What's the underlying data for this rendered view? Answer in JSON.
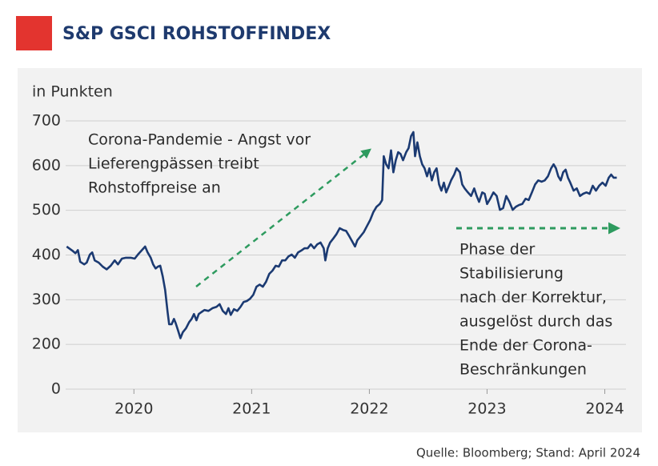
{
  "chart_data": {
    "type": "line",
    "title": "S&P GSCI ROHSTOFFINDEX",
    "y_label": "in Punkten",
    "source": "Quelle: Bloomberg; Stand: April 2024",
    "annotations": [
      [
        "Corona-Pandemie - Angst vor",
        "Lieferengpässen treibt",
        "Rohstoffpreise an"
      ],
      [
        "Phase der",
        "Stabilisierung",
        "nach der Korrektur,",
        "ausgelöst durch das",
        "Ende der Corona-",
        "Beschränkungen"
      ]
    ],
    "title_marker_color": "#e3342f",
    "xlim": [
      2019.42,
      2024.18
    ],
    "xticks": [
      2020,
      2021,
      2022,
      2023,
      2024
    ],
    "ylim": [
      0,
      700
    ],
    "yticks": [
      0,
      200,
      300,
      400,
      500,
      600,
      700
    ],
    "y_axis_break": true,
    "grid": true,
    "x": [
      2019.429,
      2019.476,
      2019.503,
      2019.524,
      2019.544,
      2019.578,
      2019.599,
      2019.626,
      2019.646,
      2019.667,
      2019.701,
      2019.735,
      2019.769,
      2019.803,
      2019.837,
      2019.864,
      2019.898,
      2019.932,
      2019.973,
      2020.007,
      2020.034,
      2020.068,
      2020.095,
      2020.116,
      2020.143,
      2020.163,
      2020.184,
      2020.204,
      2020.224,
      2020.245,
      2020.265,
      2020.286,
      2020.299,
      2020.32,
      2020.34,
      2020.354,
      2020.374,
      2020.395,
      2020.415,
      2020.442,
      2020.469,
      2020.49,
      2020.51,
      2020.531,
      2020.551,
      2020.571,
      2020.599,
      2020.633,
      2020.667,
      2020.701,
      2020.728,
      2020.755,
      2020.782,
      2020.803,
      2020.823,
      2020.85,
      2020.878,
      2020.905,
      2020.932,
      2020.959,
      2020.986,
      2021.014,
      2021.041,
      2021.068,
      2021.095,
      2021.122,
      2021.15,
      2021.177,
      2021.204,
      2021.231,
      2021.259,
      2021.286,
      2021.313,
      2021.34,
      2021.367,
      2021.395,
      2021.422,
      2021.449,
      2021.476,
      2021.503,
      2021.531,
      2021.558,
      2021.585,
      2021.612,
      2021.626,
      2021.646,
      2021.667,
      2021.694,
      2021.721,
      2021.748,
      2021.776,
      2021.803,
      2021.83,
      2021.857,
      2021.878,
      2021.898,
      2021.925,
      2021.952,
      2021.98,
      2022.007,
      2022.034,
      2022.061,
      2022.088,
      2022.109,
      2022.122,
      2022.143,
      2022.163,
      2022.184,
      2022.204,
      2022.224,
      2022.245,
      2022.265,
      2022.286,
      2022.313,
      2022.333,
      2022.354,
      2022.374,
      2022.388,
      2022.408,
      2022.429,
      2022.449,
      2022.469,
      2022.49,
      2022.51,
      2022.531,
      2022.551,
      2022.571,
      2022.592,
      2022.612,
      2022.633,
      2022.653,
      2022.673,
      2022.694,
      2022.721,
      2022.741,
      2022.769,
      2022.789,
      2022.81,
      2022.837,
      2022.864,
      2022.891,
      2022.912,
      2022.932,
      2022.959,
      2022.98,
      2023.0,
      2023.027,
      2023.054,
      2023.082,
      2023.109,
      2023.136,
      2023.163,
      2023.19,
      2023.218,
      2023.245,
      2023.272,
      2023.299,
      2023.327,
      2023.354,
      2023.381,
      2023.408,
      2023.435,
      2023.463,
      2023.49,
      2023.517,
      2023.544,
      2023.565,
      2023.585,
      2023.605,
      2023.626,
      2023.646,
      2023.667,
      2023.687,
      2023.707,
      2023.735,
      2023.762,
      2023.789,
      2023.816,
      2023.844,
      2023.871,
      2023.898,
      2023.925,
      2023.952,
      2023.98,
      2024.007,
      2024.034,
      2024.054,
      2024.075,
      2024.102
    ],
    "series": [
      {
        "name": "S&P GSCI",
        "color": "#1b3a72",
        "values": [
          419,
          410,
          404,
          411,
          385,
          379,
          383,
          401,
          406,
          388,
          383,
          374,
          368,
          376,
          388,
          379,
          392,
          394,
          394,
          392,
          401,
          411,
          419,
          406,
          394,
          379,
          370,
          374,
          376,
          352,
          322,
          272,
          245,
          245,
          257,
          248,
          232,
          214,
          227,
          236,
          250,
          257,
          268,
          254,
          268,
          272,
          277,
          275,
          281,
          284,
          290,
          275,
          268,
          281,
          266,
          279,
          275,
          284,
          295,
          297,
          302,
          311,
          329,
          334,
          329,
          340,
          358,
          365,
          376,
          374,
          388,
          388,
          397,
          401,
          394,
          406,
          410,
          415,
          415,
          424,
          415,
          424,
          428,
          415,
          388,
          415,
          428,
          437,
          447,
          460,
          456,
          454,
          442,
          429,
          419,
          433,
          442,
          451,
          465,
          478,
          496,
          508,
          514,
          523,
          621,
          603,
          594,
          634,
          585,
          612,
          630,
          626,
          612,
          630,
          639,
          666,
          675,
          621,
          652,
          621,
          603,
          594,
          576,
          594,
          567,
          585,
          594,
          558,
          544,
          562,
          540,
          553,
          567,
          580,
          594,
          585,
          558,
          549,
          540,
          532,
          549,
          532,
          519,
          540,
          537,
          514,
          526,
          540,
          532,
          501,
          505,
          532,
          519,
          501,
          508,
          512,
          514,
          526,
          523,
          540,
          558,
          567,
          564,
          567,
          576,
          594,
          603,
          594,
          576,
          567,
          585,
          591,
          573,
          562,
          544,
          549,
          532,
          537,
          540,
          537,
          555,
          544,
          555,
          562,
          555,
          573,
          580,
          573,
          573
        ]
      }
    ]
  }
}
